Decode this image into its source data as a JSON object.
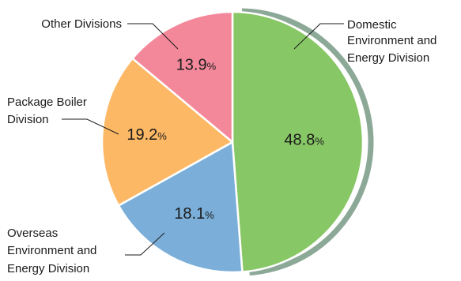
{
  "chart_data": {
    "type": "pie",
    "title": "",
    "unit": "%",
    "slices": [
      {
        "label": "Domestic\nEnvironment and\nEnergy Division",
        "value": 48.8,
        "display": "48.8",
        "color": "#88c765"
      },
      {
        "label": "Overseas\nEnvironment and\nEnergy Division",
        "value": 18.1,
        "display": "18.1",
        "color": "#7bafd9"
      },
      {
        "label": "Package Boiler\nDivision",
        "value": 19.2,
        "display": "19.2",
        "color": "#fcb865"
      },
      {
        "label": "Other Divisions",
        "value": 13.9,
        "display": "13.9",
        "color": "#f4889b"
      }
    ],
    "highlight_ring_color": "#8ca897",
    "slice_border_color": "#ffffff",
    "leader_line_color": "#1a1a1a"
  }
}
